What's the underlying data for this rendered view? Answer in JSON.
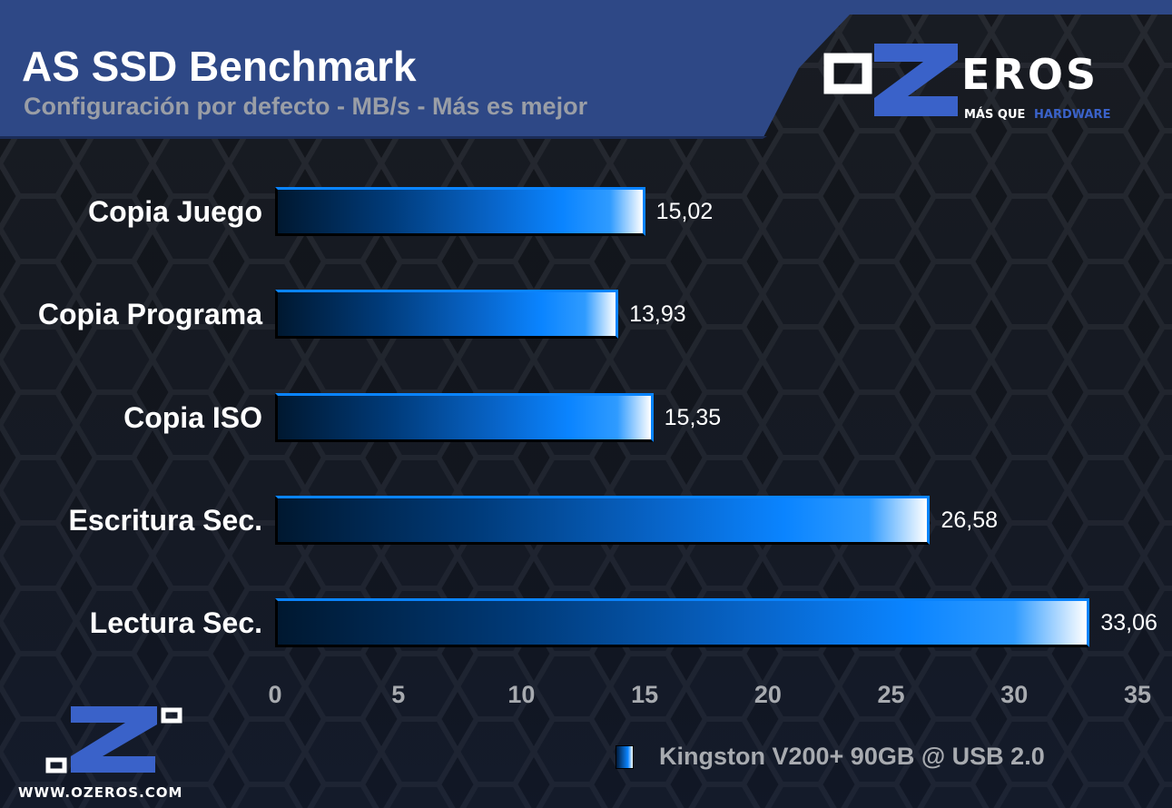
{
  "header": {
    "title": "AS SSD Benchmark",
    "subtitle": "Configuración por defecto - MB/s - Más es mejor"
  },
  "logo": {
    "text": "oZeros",
    "tagline_white": "MÁS QUE",
    "tagline_blue": "HARDWARE",
    "url": "WWW.OZEROS.COM"
  },
  "colors": {
    "header": "#2e4886",
    "bar": "#0a84ff",
    "logo_blue": "#3a62c9"
  },
  "chart_data": {
    "type": "bar",
    "orientation": "horizontal",
    "title": "AS SSD Benchmark",
    "subtitle": "Configuración por defecto - MB/s - Más es mejor",
    "categories": [
      "Copia Juego",
      "Copia Programa",
      "Copia ISO",
      "Escritura Sec.",
      "Lectura Sec."
    ],
    "series": [
      {
        "name": "Kingston V200+ 90GB @ USB 2.0",
        "values": [
          15.02,
          13.93,
          15.35,
          26.58,
          33.06
        ],
        "labels": [
          "15,02",
          "13,93",
          "15,35",
          "26,58",
          "33,06"
        ]
      }
    ],
    "xlim": [
      0,
      35
    ],
    "ticks": [
      "0",
      "5",
      "10",
      "15",
      "20",
      "25",
      "30",
      "35"
    ],
    "grid": false,
    "legend": "bottom-right"
  }
}
